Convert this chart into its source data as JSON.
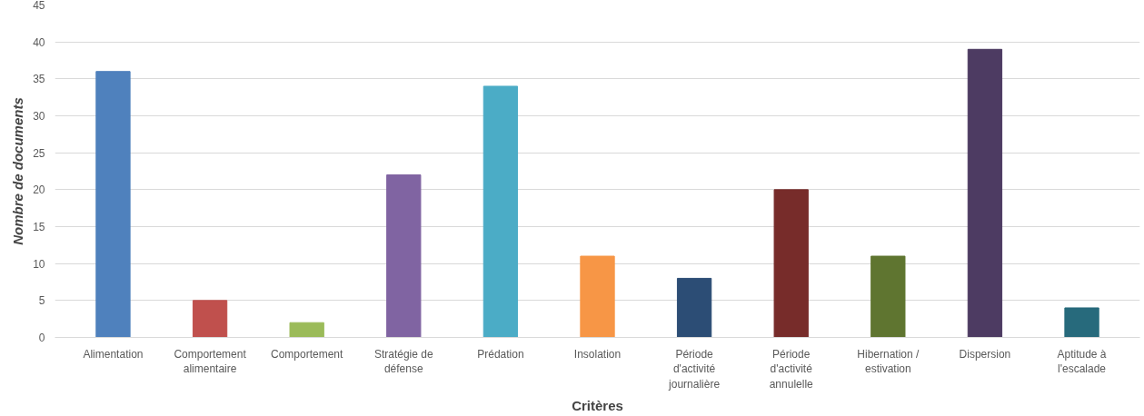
{
  "chart_data": {
    "type": "bar",
    "xlabel": "Critères",
    "ylabel": "Nombre de documents",
    "categories": [
      "Alimentation",
      "Comportement alimentaire",
      "Comportement",
      "Stratégie de défense",
      "Prédation",
      "Insolation",
      "Période d'activité journalière",
      "Période d'activité annulelle",
      "Hibernation / estivation",
      "Dispersion",
      "Aptitude à l'escalade"
    ],
    "values": [
      36,
      5,
      2,
      22,
      34,
      11,
      8,
      20,
      11,
      39,
      4
    ],
    "colors": [
      "#4f81bd",
      "#c0504d",
      "#9bbb59",
      "#8064a2",
      "#4bacc6",
      "#f79646",
      "#2c4d75",
      "#772c2a",
      "#5f7530",
      "#4d3b62",
      "#276a7c"
    ],
    "ylim": [
      0,
      45
    ],
    "yticks": [
      0,
      5,
      10,
      15,
      20,
      25,
      30,
      35,
      40,
      45
    ],
    "grid": "y"
  }
}
